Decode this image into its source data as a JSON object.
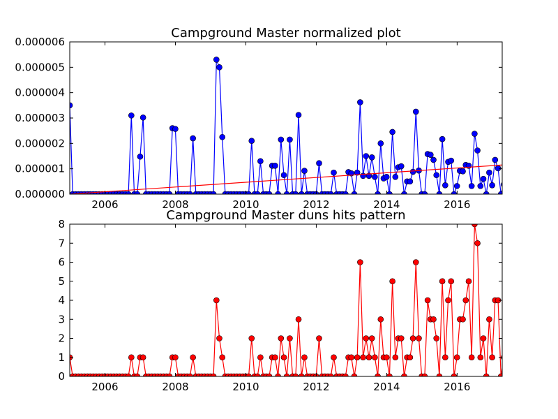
{
  "chart_data": [
    {
      "type": "line",
      "title": "Campground Master normalized plot",
      "xlabel": "",
      "ylabel": "",
      "xlim": [
        2005.0,
        2017.28
      ],
      "ylim": [
        0,
        6e-06
      ],
      "x_ticks": [
        2006,
        2008,
        2010,
        2012,
        2014,
        2016
      ],
      "x_tick_labels": [
        "2006",
        "2008",
        "2010",
        "2012",
        "2014",
        "2016"
      ],
      "y_ticks": [
        0,
        1e-06,
        2e-06,
        3e-06,
        4e-06,
        5e-06,
        6e-06
      ],
      "y_tick_labels": [
        "0.000000",
        "0.000001",
        "0.000002",
        "0.000003",
        "0.000004",
        "0.000005",
        "0.000006"
      ],
      "grid": false,
      "colors": {
        "series": "#0000ff",
        "trend": "#ff0000"
      },
      "series": [
        {
          "x_start": 2005.0,
          "x_step": 0.0833,
          "values": [
            3.5e-06,
            0,
            0,
            0,
            0,
            0,
            0,
            0,
            0,
            0,
            0,
            0,
            0,
            0,
            0,
            0,
            0,
            0,
            0,
            0,
            0,
            3.1e-06,
            0,
            0,
            1.48e-06,
            3.02e-06,
            0,
            0,
            0,
            0,
            0,
            0,
            0,
            0,
            0,
            2.6e-06,
            2.57e-06,
            0,
            0,
            0,
            0,
            0,
            2.2e-06,
            0,
            0,
            0,
            0,
            0,
            0,
            0,
            5.3e-06,
            5e-06,
            2.25e-06,
            0,
            0,
            0,
            0,
            0,
            0,
            0,
            0,
            0,
            2.1e-06,
            0,
            0,
            1.3e-06,
            0,
            0,
            0,
            1.12e-06,
            1.12e-06,
            0,
            2.15e-06,
            7.5e-07,
            0,
            2.15e-06,
            0,
            0,
            3.12e-06,
            0,
            9.2e-07,
            0,
            0,
            0,
            0,
            1.22e-06,
            0,
            0,
            0,
            0,
            8.5e-07,
            0,
            0,
            0,
            0,
            8.7e-07,
            8.2e-07,
            0,
            8.5e-07,
            3.62e-06,
            7.2e-07,
            1.5e-06,
            7.2e-07,
            1.45e-06,
            6.8e-07,
            0,
            2e-06,
            6.2e-07,
            6.8e-07,
            0,
            2.45e-06,
            6.8e-07,
            1.06e-06,
            1.1e-06,
            0,
            5e-07,
            5e-07,
            8.8e-07,
            3.25e-06,
            9.3e-07,
            0,
            0,
            1.58e-06,
            1.55e-06,
            1.35e-06,
            7.5e-07,
            0,
            2.17e-06,
            3.5e-07,
            1.27e-06,
            1.32e-06,
            0,
            3.2e-07,
            9.2e-07,
            9e-07,
            1.15e-06,
            1.12e-06,
            3.2e-07,
            2.38e-06,
            1.72e-06,
            3.2e-07,
            6e-07,
            0,
            8.5e-07,
            3.5e-07,
            1.35e-06,
            1.02e-06,
            0,
            3.8e-07,
            7.8e-07
          ]
        },
        {
          "x": [
            2005.0,
            2017.28
          ],
          "values": [
            0,
            1.15e-06
          ]
        }
      ]
    },
    {
      "type": "line",
      "title": "Campground Master duns hits pattern",
      "xlabel": "",
      "ylabel": "",
      "xlim": [
        2005.0,
        2017.28
      ],
      "ylim": [
        0,
        8
      ],
      "x_ticks": [
        2006,
        2008,
        2010,
        2012,
        2014,
        2016
      ],
      "x_tick_labels": [
        "2006",
        "2008",
        "2010",
        "2012",
        "2014",
        "2016"
      ],
      "y_ticks": [
        0,
        1,
        2,
        3,
        4,
        5,
        6,
        7,
        8
      ],
      "y_tick_labels": [
        "0",
        "1",
        "2",
        "3",
        "4",
        "5",
        "6",
        "7",
        "8"
      ],
      "grid": false,
      "colors": {
        "series": "#ff0000"
      },
      "series": [
        {
          "x_start": 2005.0,
          "x_step": 0.0833,
          "values": [
            1,
            0,
            0,
            0,
            0,
            0,
            0,
            0,
            0,
            0,
            0,
            0,
            0,
            0,
            0,
            0,
            0,
            0,
            0,
            0,
            0,
            1,
            0,
            0,
            1,
            1,
            0,
            0,
            0,
            0,
            0,
            0,
            0,
            0,
            0,
            1,
            1,
            0,
            0,
            0,
            0,
            0,
            1,
            0,
            0,
            0,
            0,
            0,
            0,
            0,
            4,
            2,
            1,
            0,
            0,
            0,
            0,
            0,
            0,
            0,
            0,
            0,
            2,
            0,
            0,
            1,
            0,
            0,
            0,
            1,
            1,
            0,
            2,
            1,
            0,
            2,
            0,
            0,
            3,
            0,
            1,
            0,
            0,
            0,
            0,
            2,
            0,
            0,
            0,
            0,
            1,
            0,
            0,
            0,
            0,
            1,
            1,
            0,
            1,
            6,
            1,
            2,
            1,
            2,
            1,
            0,
            3,
            1,
            1,
            0,
            5,
            1,
            2,
            2,
            0,
            1,
            1,
            2,
            6,
            2,
            0,
            0,
            4,
            3,
            3,
            2,
            0,
            5,
            1,
            4,
            5,
            0,
            1,
            3,
            3,
            4,
            5,
            1,
            8,
            7,
            1,
            2,
            0,
            3,
            1,
            4,
            4,
            0,
            1,
            1
          ]
        }
      ]
    }
  ]
}
